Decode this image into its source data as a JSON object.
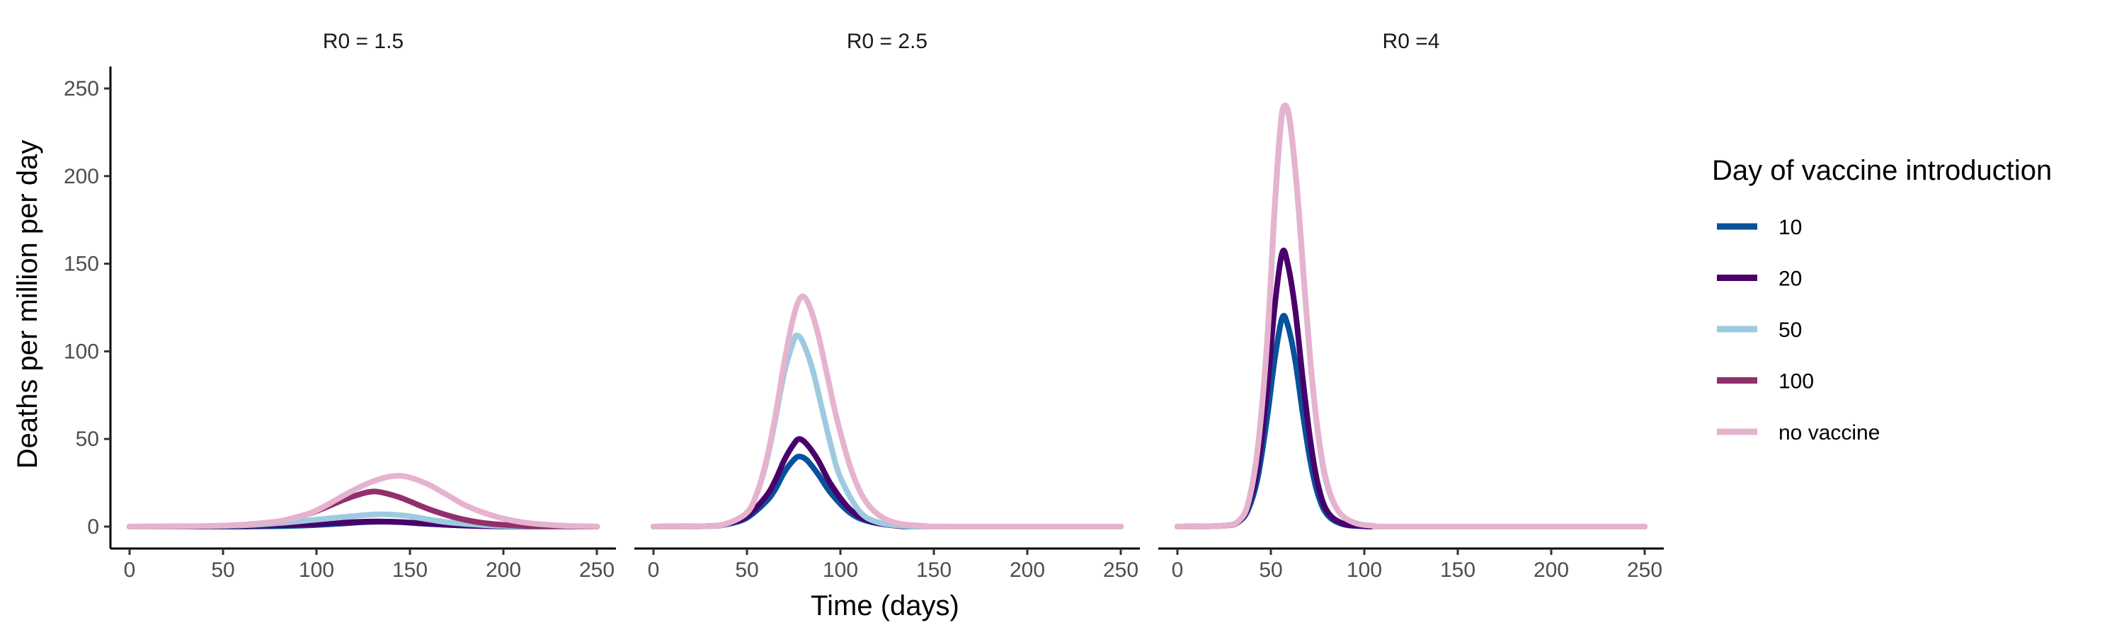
{
  "chart_data": {
    "type": "line",
    "xlabel": "Time (days)",
    "ylabel": "Deaths per million per day",
    "xlim": [
      0,
      250
    ],
    "ylim": [
      0,
      250
    ],
    "x_ticks": [
      0,
      50,
      100,
      150,
      200,
      250
    ],
    "y_ticks": [
      0,
      50,
      100,
      150,
      200,
      250
    ],
    "grid": false,
    "legend": {
      "title": "Day of vaccine introduction",
      "placement": "right"
    },
    "series_styles": [
      {
        "name": "10",
        "color": "#08519c"
      },
      {
        "name": "20",
        "color": "#49006a"
      },
      {
        "name": "50",
        "color": "#9ecae1"
      },
      {
        "name": "100",
        "color": "#91306b"
      },
      {
        "name": "no vaccine",
        "color": "#e6b3cf"
      }
    ],
    "panels": [
      {
        "title": "R0 = 1.5",
        "series": [
          {
            "name": "10",
            "values": [
              [
                0,
                0
              ],
              [
                30,
                0
              ],
              [
                60,
                0
              ],
              [
                90,
                0.5
              ],
              [
                110,
                1.5
              ],
              [
                125,
                2.5
              ],
              [
                135,
                2.8
              ],
              [
                145,
                2.5
              ],
              [
                160,
                1.5
              ],
              [
                180,
                0.5
              ],
              [
                200,
                0.1
              ],
              [
                230,
                0
              ],
              [
                250,
                0
              ]
            ]
          },
          {
            "name": "20",
            "values": [
              [
                0,
                0
              ],
              [
                30,
                0
              ],
              [
                60,
                0.3
              ],
              [
                80,
                0.8
              ],
              [
                100,
                1.5
              ],
              [
                115,
                2.3
              ],
              [
                125,
                2.8
              ],
              [
                135,
                2.9
              ],
              [
                145,
                2.6
              ],
              [
                160,
                1.6
              ],
              [
                180,
                0.6
              ],
              [
                210,
                0.1
              ],
              [
                250,
                0
              ]
            ]
          },
          {
            "name": "50",
            "values": [
              [
                0,
                0
              ],
              [
                40,
                0.2
              ],
              [
                60,
                0.7
              ],
              [
                80,
                2
              ],
              [
                100,
                4
              ],
              [
                115,
                5.5
              ],
              [
                125,
                6.5
              ],
              [
                135,
                7
              ],
              [
                145,
                6.5
              ],
              [
                155,
                5
              ],
              [
                170,
                2.5
              ],
              [
                190,
                0.8
              ],
              [
                210,
                0.2
              ],
              [
                250,
                0
              ]
            ]
          },
          {
            "name": "100",
            "values": [
              [
                0,
                0
              ],
              [
                40,
                0.2
              ],
              [
                60,
                1
              ],
              [
                80,
                3
              ],
              [
                95,
                7
              ],
              [
                105,
                11
              ],
              [
                115,
                15.5
              ],
              [
                125,
                19
              ],
              [
                130,
                20
              ],
              [
                135,
                19.5
              ],
              [
                145,
                16.5
              ],
              [
                160,
                10
              ],
              [
                175,
                5
              ],
              [
                190,
                2
              ],
              [
                210,
                0.5
              ],
              [
                250,
                0
              ]
            ]
          },
          {
            "name": "no vaccine",
            "values": [
              [
                0,
                0
              ],
              [
                40,
                0.3
              ],
              [
                60,
                1
              ],
              [
                80,
                3
              ],
              [
                95,
                7
              ],
              [
                105,
                12
              ],
              [
                115,
                18
              ],
              [
                125,
                23.5
              ],
              [
                135,
                27.5
              ],
              [
                143,
                29
              ],
              [
                150,
                28
              ],
              [
                160,
                24
              ],
              [
                170,
                18
              ],
              [
                180,
                12
              ],
              [
                195,
                6
              ],
              [
                210,
                2.5
              ],
              [
                230,
                0.6
              ],
              [
                250,
                0.1
              ]
            ]
          }
        ]
      },
      {
        "title": "R0 = 2.5",
        "series": [
          {
            "name": "10",
            "values": [
              [
                0,
                0
              ],
              [
                30,
                0.3
              ],
              [
                40,
                1.5
              ],
              [
                50,
                5
              ],
              [
                60,
                14
              ],
              [
                65,
                21
              ],
              [
                70,
                31
              ],
              [
                75,
                38
              ],
              [
                78,
                40
              ],
              [
                82,
                38
              ],
              [
                88,
                30
              ],
              [
                95,
                19
              ],
              [
                105,
                8
              ],
              [
                115,
                3
              ],
              [
                130,
                0.5
              ],
              [
                150,
                0
              ],
              [
                250,
                0
              ]
            ]
          },
          {
            "name": "20",
            "values": [
              [
                0,
                0
              ],
              [
                30,
                0.3
              ],
              [
                40,
                1.8
              ],
              [
                50,
                6
              ],
              [
                60,
                17
              ],
              [
                65,
                26
              ],
              [
                70,
                38
              ],
              [
                75,
                47
              ],
              [
                78,
                50
              ],
              [
                82,
                47
              ],
              [
                88,
                38
              ],
              [
                95,
                24
              ],
              [
                105,
                10
              ],
              [
                115,
                3.5
              ],
              [
                130,
                0.5
              ],
              [
                150,
                0
              ],
              [
                250,
                0
              ]
            ]
          },
          {
            "name": "50",
            "values": [
              [
                0,
                0
              ],
              [
                30,
                0.3
              ],
              [
                40,
                2
              ],
              [
                50,
                8
              ],
              [
                55,
                18
              ],
              [
                60,
                35
              ],
              [
                65,
                60
              ],
              [
                70,
                88
              ],
              [
                75,
                106
              ],
              [
                77,
                109
              ],
              [
                80,
                105
              ],
              [
                85,
                90
              ],
              [
                90,
                68
              ],
              [
                95,
                46
              ],
              [
                100,
                28
              ],
              [
                110,
                9
              ],
              [
                120,
                2.5
              ],
              [
                135,
                0.3
              ],
              [
                150,
                0
              ],
              [
                250,
                0
              ]
            ]
          },
          {
            "name": "no vaccine",
            "values": [
              [
                0,
                0
              ],
              [
                30,
                0.3
              ],
              [
                40,
                2
              ],
              [
                50,
                8
              ],
              [
                55,
                18
              ],
              [
                60,
                36
              ],
              [
                65,
                62
              ],
              [
                70,
                94
              ],
              [
                75,
                120
              ],
              [
                79,
                131
              ],
              [
                83,
                127
              ],
              [
                88,
                110
              ],
              [
                93,
                86
              ],
              [
                98,
                62
              ],
              [
                105,
                35
              ],
              [
                112,
                17
              ],
              [
                120,
                7
              ],
              [
                130,
                2
              ],
              [
                145,
                0.4
              ],
              [
                160,
                0
              ],
              [
                250,
                0
              ]
            ]
          }
        ]
      },
      {
        "title": "R0 =4",
        "series": [
          {
            "name": "10",
            "values": [
              [
                0,
                0
              ],
              [
                25,
                0.5
              ],
              [
                33,
                3
              ],
              [
                38,
                10
              ],
              [
                43,
                28
              ],
              [
                48,
                62
              ],
              [
                52,
                95
              ],
              [
                56,
                119
              ],
              [
                59,
                115
              ],
              [
                63,
                95
              ],
              [
                67,
                65
              ],
              [
                71,
                38
              ],
              [
                75,
                19
              ],
              [
                80,
                7
              ],
              [
                88,
                1.5
              ],
              [
                100,
                0.2
              ],
              [
                120,
                0
              ],
              [
                250,
                0
              ]
            ]
          },
          {
            "name": "20",
            "values": [
              [
                0,
                0
              ],
              [
                25,
                0.5
              ],
              [
                33,
                3
              ],
              [
                38,
                12
              ],
              [
                43,
                34
              ],
              [
                48,
                78
              ],
              [
                52,
                125
              ],
              [
                56,
                156
              ],
              [
                59,
                150
              ],
              [
                63,
                124
              ],
              [
                67,
                85
              ],
              [
                71,
                50
              ],
              [
                75,
                25
              ],
              [
                80,
                9
              ],
              [
                88,
                2
              ],
              [
                100,
                0.2
              ],
              [
                120,
                0
              ],
              [
                250,
                0
              ]
            ]
          },
          {
            "name": "50",
            "values": [
              [
                0,
                0
              ],
              [
                25,
                0.5
              ],
              [
                33,
                3.5
              ],
              [
                38,
                14
              ],
              [
                43,
                45
              ],
              [
                48,
                105
              ],
              [
                52,
                180
              ],
              [
                55,
                225
              ],
              [
                57,
                239
              ],
              [
                60,
                232
              ],
              [
                64,
                192
              ],
              [
                68,
                136
              ],
              [
                72,
                84
              ],
              [
                76,
                47
              ],
              [
                80,
                24
              ],
              [
                86,
                9
              ],
              [
                94,
                2.5
              ],
              [
                105,
                0.4
              ],
              [
                120,
                0
              ],
              [
                250,
                0
              ]
            ]
          },
          {
            "name": "no vaccine",
            "values": [
              [
                0,
                0
              ],
              [
                25,
                0.5
              ],
              [
                33,
                3.5
              ],
              [
                38,
                14
              ],
              [
                43,
                45
              ],
              [
                48,
                106
              ],
              [
                52,
                182
              ],
              [
                55,
                227
              ],
              [
                57,
                240
              ],
              [
                60,
                233
              ],
              [
                64,
                193
              ],
              [
                68,
                137
              ],
              [
                72,
                85
              ],
              [
                76,
                48
              ],
              [
                80,
                25
              ],
              [
                86,
                9
              ],
              [
                94,
                2.5
              ],
              [
                105,
                0.4
              ],
              [
                120,
                0
              ],
              [
                250,
                0
              ]
            ]
          }
        ]
      }
    ]
  }
}
